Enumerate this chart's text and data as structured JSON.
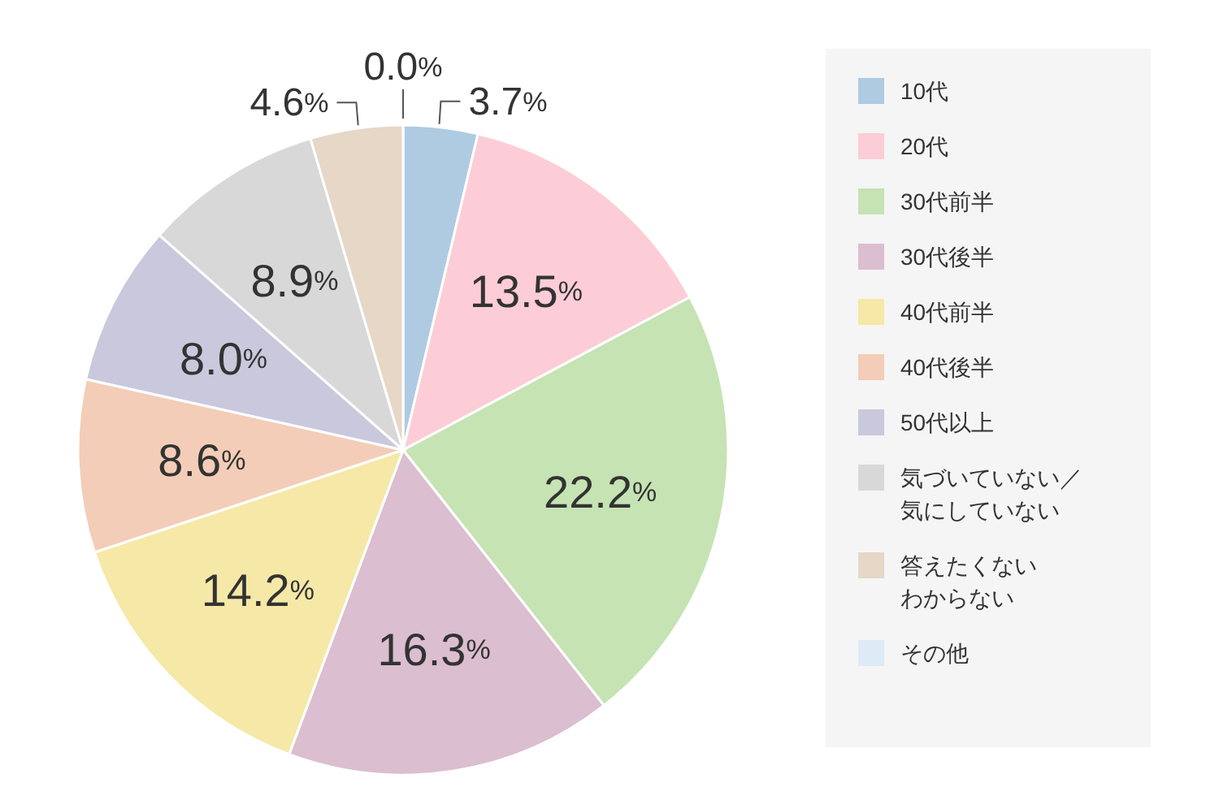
{
  "chart_data": {
    "type": "pie",
    "categories": [
      "10代",
      "20代",
      "30代前半",
      "30代後半",
      "40代前半",
      "40代後半",
      "50代以上",
      "気づいていない／気にしていない",
      "答えたくないわからない",
      "その他"
    ],
    "values": [
      3.7,
      13.5,
      22.2,
      16.3,
      14.2,
      8.6,
      8.0,
      8.9,
      4.6,
      0.0
    ],
    "colors": [
      "#afcbe2",
      "#fccdd6",
      "#c6e3b4",
      "#dbbecf",
      "#f6e8a6",
      "#f3cdb7",
      "#c9c8dd",
      "#d8d8d8",
      "#e6d7c6",
      "#dcebf5"
    ],
    "value_labels": [
      "3.7%",
      "13.5%",
      "22.2%",
      "16.3%",
      "14.2%",
      "8.6%",
      "8.0%",
      "8.9%",
      "4.6%",
      "0.0%"
    ],
    "legend": "right"
  }
}
